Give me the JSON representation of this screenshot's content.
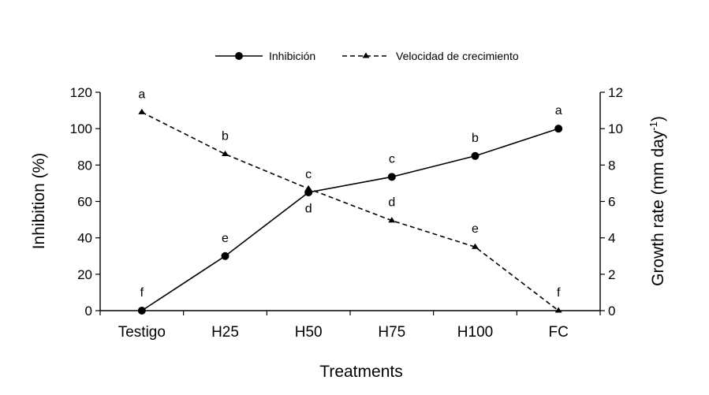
{
  "chart_data": {
    "type": "line",
    "title": "",
    "xlabel": "Treatments",
    "ylabel": "Inhibition (%)",
    "y2label": "Growth rate (mm day",
    "y2label_sup": "-1",
    "y2label_tail": ")",
    "categories": [
      "Testigo",
      "H25",
      "H50",
      "H75",
      "H100",
      "FC"
    ],
    "ylim": [
      0,
      120
    ],
    "y2lim": [
      0,
      12
    ],
    "yticks": [
      "0",
      "20",
      "40",
      "60",
      "80",
      "100",
      "120"
    ],
    "y2ticks": [
      "0",
      "2",
      "4",
      "6",
      "8",
      "10",
      "12"
    ],
    "legend_position": "top-center",
    "series": [
      {
        "name": "Inhibición",
        "axis": "left",
        "style": "solid",
        "marker": "circle",
        "values": [
          0,
          30,
          65,
          73.5,
          85,
          100
        ],
        "letters": [
          "f",
          "e",
          "c",
          "c",
          "b",
          "a"
        ]
      },
      {
        "name": "Velocidad de crecimiento",
        "axis": "right",
        "style": "dashed",
        "marker": "triangle",
        "values": [
          10.9,
          8.6,
          6.7,
          4.95,
          3.5,
          0
        ],
        "letters": [
          "a",
          "b",
          "d",
          "d",
          "e",
          "f"
        ]
      }
    ]
  }
}
